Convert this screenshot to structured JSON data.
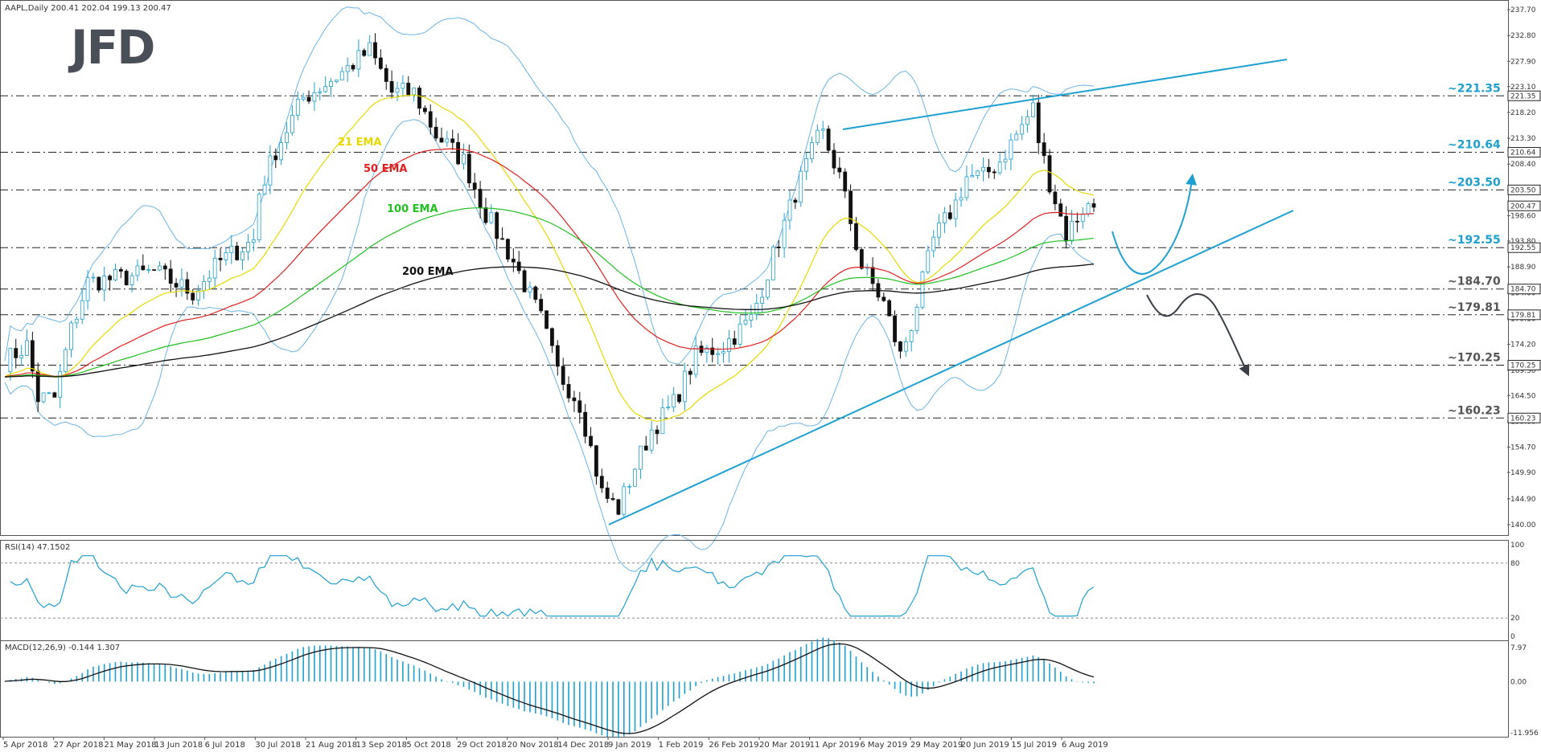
{
  "logo": "JFD",
  "chart_data": [
    {
      "type": "candlestick",
      "title": "AAPL,Daily",
      "ohlc_readout": "200.41 202.04 199.13 200.47",
      "ylim": [
        140.0,
        237.7
      ],
      "y_ticks": [
        237.7,
        232.8,
        227.9,
        223.1,
        218.2,
        213.3,
        208.4,
        203.5,
        198.6,
        193.8,
        188.9,
        184.0,
        179.1,
        174.2,
        169.3,
        164.5,
        159.6,
        154.7,
        149.9,
        144.9,
        140.0
      ],
      "y_tick_labels": [
        "237.70",
        "232.80",
        "227.90",
        "223.10",
        "218.20",
        "213.30",
        "208.40",
        "203.50",
        "198.60",
        "193.80",
        "188.90",
        "184.00",
        "179.10",
        "174.20",
        "169.30",
        "164.50",
        "159.60",
        "154.70",
        "149.90",
        "144.90",
        "140.00"
      ],
      "x_labels": [
        "5 Apr 2018",
        "27 Apr 2018",
        "21 May 2018",
        "13 Jun 2018",
        "6 Jul 2018",
        "30 Jul 2018",
        "21 Aug 2018",
        "13 Sep 2018",
        "5 Oct 2018",
        "29 Oct 2018",
        "20 Nov 2018",
        "14 Dec 2018",
        "9 Jan 2019",
        "1 Feb 2019",
        "26 Feb 2019",
        "20 Mar 2019",
        "11 Apr 2019",
        "6 May 2019",
        "29 May 2019",
        "20 Jun 2019",
        "15 Jul 2019",
        "6 Aug 2019"
      ],
      "levels": [
        {
          "value": 221.35,
          "label": "~221.35",
          "box": "221.35"
        },
        {
          "value": 210.64,
          "label": "~210.64",
          "box": "210.64"
        },
        {
          "value": 203.5,
          "label": "~203.50",
          "box": "203.50"
        },
        {
          "value": 192.55,
          "label": "~192.55",
          "box": "192.55"
        },
        {
          "value": 184.7,
          "label": "~184.70",
          "box": "184.70"
        },
        {
          "value": 179.81,
          "label": "~179.81",
          "box": "179.81"
        },
        {
          "value": 170.25,
          "label": "~170.25",
          "box": "170.25"
        },
        {
          "value": 160.23,
          "label": "~160.23",
          "box": "160.23"
        }
      ],
      "last_price": {
        "value": 200.47,
        "label": "200.47"
      },
      "series": [
        {
          "name": "21 EMA",
          "color": "#e8d800",
          "label_color": "#e8d800"
        },
        {
          "name": "50 EMA",
          "color": "#e02020",
          "label_color": "#e02020"
        },
        {
          "name": "100 EMA",
          "color": "#20c020",
          "label_color": "#20c020"
        },
        {
          "name": "200 EMA",
          "color": "#111111",
          "label_color": "#111111"
        }
      ],
      "bollinger_color": "#6cb4e6",
      "trendlines": [
        {
          "from": [
            54,
            142.2
          ],
          "to": [
            136,
            192.0
          ],
          "color": "#1ea0d2"
        },
        {
          "from": [
            105,
            215.6
          ],
          "to": [
            158,
            227.9
          ],
          "color": "#1ea0d2"
        }
      ],
      "colors": {
        "up": "#1ea0d2",
        "down": "#111111",
        "arrow_up": "#1ea0d2",
        "arrow_down": "#3a3f46"
      }
    },
    {
      "type": "line",
      "title": "RSI(14) 47.1502",
      "ylim": [
        0,
        100
      ],
      "y_tick_labels": [
        "100",
        "80",
        "20",
        "0"
      ],
      "color": "#1ea0d2"
    },
    {
      "type": "bar",
      "title": "MACD(12,26,9) -0.144 1.307",
      "ylim": [
        -11.956,
        7.97
      ],
      "y_tick_labels": [
        "7.97",
        "0.00",
        "-11.956"
      ],
      "color": "#1ea0d2"
    }
  ]
}
